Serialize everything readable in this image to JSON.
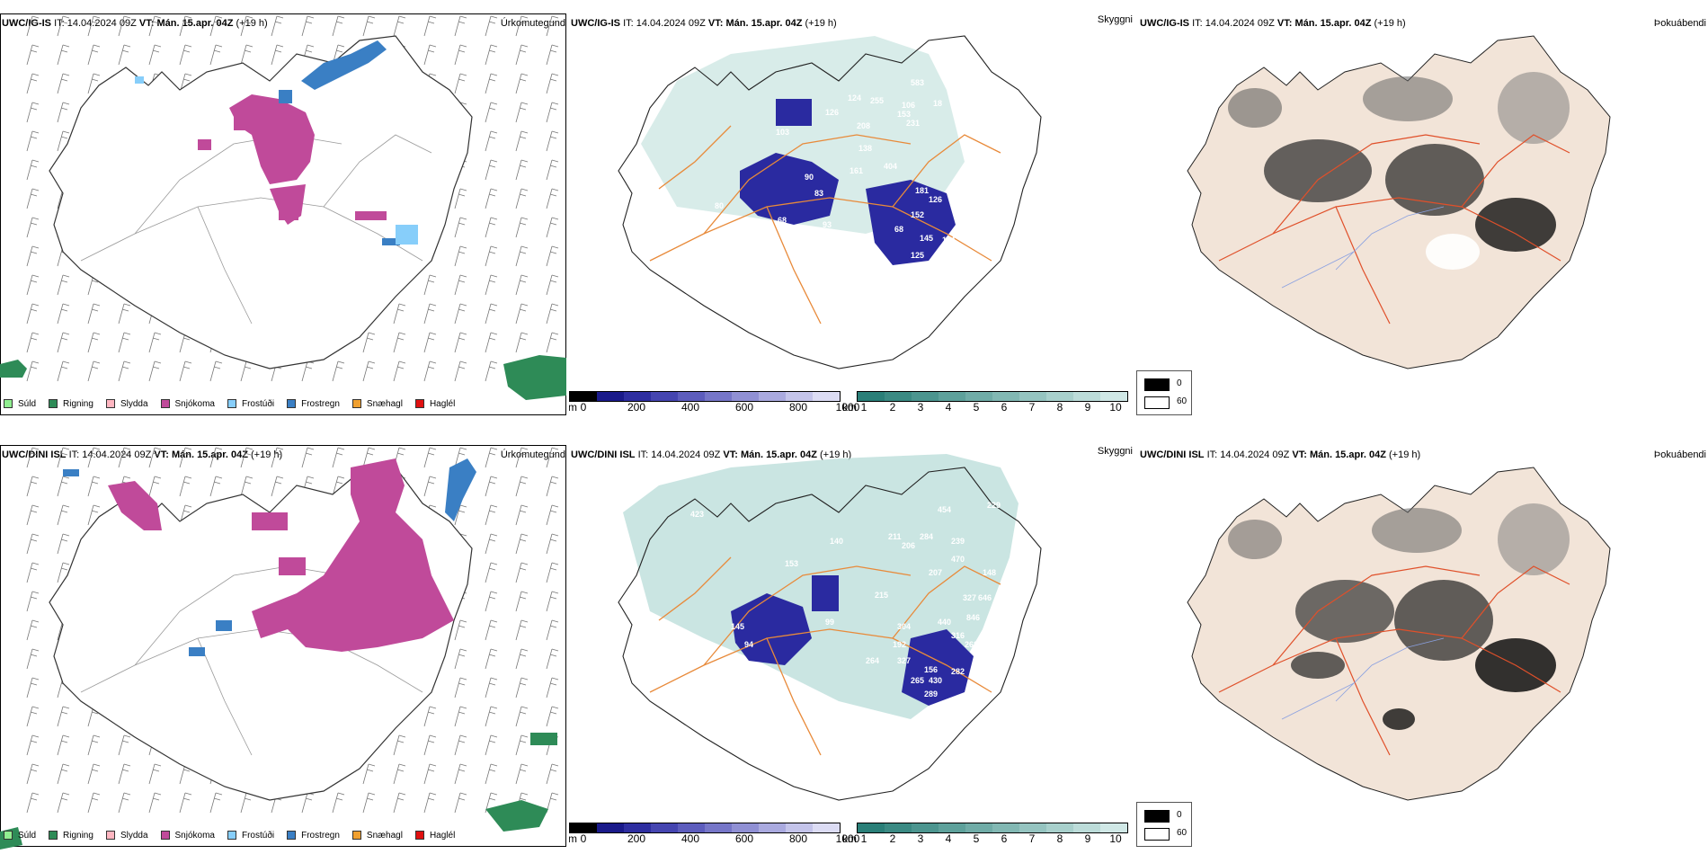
{
  "rows": [
    {
      "model": "UWC/IG-IS",
      "init_label": "IT:",
      "init_time": "14.04.2024 09Z",
      "valid_label": "VT:",
      "valid_time": "Mán. 15.apr. 04Z",
      "lead": "(+19 h)"
    },
    {
      "model": "UWC/DINI ISL",
      "init_label": "IT:",
      "init_time": "14.04.2024 09Z",
      "valid_label": "VT:",
      "valid_time": "Mán. 15.apr. 04Z",
      "lead": "(+19 h)"
    }
  ],
  "panel_titles": {
    "precip_type": "Úrkomutegund",
    "visibility": "Skyggni",
    "fog_index": "Þokuábendi"
  },
  "precip_legend": [
    {
      "label": "Súld",
      "color": "#90ee90"
    },
    {
      "label": "Rigning",
      "color": "#2e8b57"
    },
    {
      "label": "Slydda",
      "color": "#ffb6c1"
    },
    {
      "label": "Snjókoma",
      "color": "#c04a9a"
    },
    {
      "label": "Frostúði",
      "color": "#87cefa"
    },
    {
      "label": "Frostregn",
      "color": "#3a7fc4"
    },
    {
      "label": "Snæhagl",
      "color": "#f0a030"
    },
    {
      "label": "Haglél",
      "color": "#e01010"
    }
  ],
  "vis_m_scale": {
    "unit": "m",
    "ticks": [
      "0",
      "200",
      "400",
      "600",
      "800",
      "1000"
    ],
    "colors": [
      "#000000",
      "#1a1a8a",
      "#2e2ea0",
      "#4545b0",
      "#5d5dbd",
      "#7676c8",
      "#9090d4",
      "#aaaadf",
      "#c4c4ea",
      "#dcdcf4"
    ]
  },
  "vis_km_scale": {
    "unit": "km",
    "ticks": [
      "1",
      "2",
      "3",
      "4",
      "5",
      "6",
      "7",
      "8",
      "9",
      "10"
    ],
    "colors": [
      "#2a7f78",
      "#3b8a83",
      "#4c958f",
      "#5ea19b",
      "#70aca7",
      "#82b8b3",
      "#95c4c0",
      "#a8d0cc",
      "#bcdcd9",
      "#d0e8e6"
    ]
  },
  "fog_legend": [
    {
      "label": "0",
      "color": "#000000"
    },
    {
      "label": "60",
      "color": "#ffffff"
    }
  ],
  "vis_labels_top": [
    "583",
    "124",
    "255",
    "106",
    "18",
    "126",
    "153",
    "208",
    "138",
    "231",
    "97",
    "103",
    "404",
    "181",
    "126",
    "155",
    "122",
    "83",
    "90",
    "161",
    "80",
    "68",
    "93",
    "78",
    "68",
    "152",
    "145",
    "114",
    "125",
    "134",
    "78",
    "57"
  ],
  "vis_labels_bottom": [
    "423",
    "454",
    "229",
    "211",
    "284",
    "239",
    "206",
    "153",
    "140",
    "215",
    "207",
    "470",
    "148",
    "316",
    "327",
    "646",
    "145",
    "99",
    "304",
    "440",
    "846",
    "94",
    "192",
    "268",
    "264",
    "327",
    "156",
    "430",
    "282",
    "82",
    "75",
    "94",
    "289",
    "265"
  ]
}
